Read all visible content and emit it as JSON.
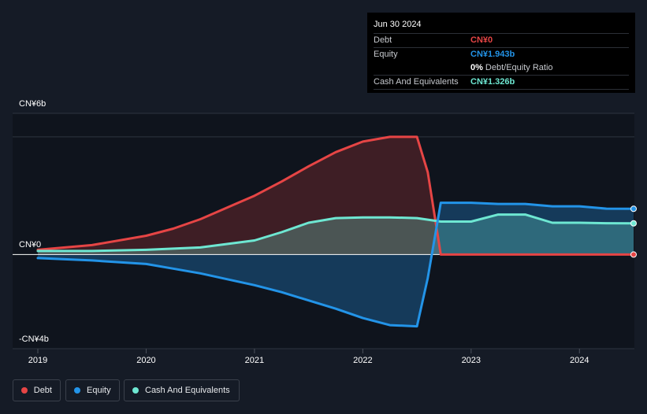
{
  "tooltip": {
    "date": "Jun 30 2024",
    "debt_label": "Debt",
    "debt_value": "CN¥0",
    "equity_label": "Equity",
    "equity_value": "CN¥1.943b",
    "ratio_value": "0%",
    "ratio_label": "Debt/Equity Ratio",
    "cash_label": "Cash And Equivalents",
    "cash_value": "CN¥1.326b"
  },
  "legend": {
    "debt": "Debt",
    "equity": "Equity",
    "cash": "Cash And Equivalents"
  },
  "colors": {
    "debt": "#e64545",
    "equity": "#2394e8",
    "cash": "#6ee7d2",
    "background": "#151b26",
    "plot_background": "#0f141d"
  },
  "chart_data": {
    "type": "area",
    "y_unit": "CN¥b",
    "ylim": [
      -4,
      6
    ],
    "ytick_labels": [
      "CN¥6b",
      "CN¥0",
      "-CN¥4b"
    ],
    "ytick_values": [
      6,
      0,
      -4
    ],
    "x_range": [
      2019.0,
      2024.5
    ],
    "xtick_labels": [
      "2019",
      "2020",
      "2021",
      "2022",
      "2023",
      "2024"
    ],
    "xtick_values": [
      2019,
      2020,
      2021,
      2022,
      2023,
      2024
    ],
    "legend_position": "bottom-left",
    "series": [
      {
        "name": "Debt",
        "color_key": "debt",
        "points": [
          [
            2019.0,
            0.2
          ],
          [
            2019.5,
            0.4
          ],
          [
            2020.0,
            0.8
          ],
          [
            2020.25,
            1.1
          ],
          [
            2020.5,
            1.5
          ],
          [
            2020.75,
            2.0
          ],
          [
            2021.0,
            2.5
          ],
          [
            2021.25,
            3.1
          ],
          [
            2021.5,
            3.75
          ],
          [
            2021.75,
            4.35
          ],
          [
            2022.0,
            4.8
          ],
          [
            2022.25,
            5.0
          ],
          [
            2022.5,
            5.0
          ],
          [
            2022.6,
            3.5
          ],
          [
            2022.72,
            0.0
          ],
          [
            2023.0,
            0.0
          ],
          [
            2023.5,
            0.0
          ],
          [
            2024.0,
            0.0
          ],
          [
            2024.5,
            0.0
          ]
        ]
      },
      {
        "name": "Equity",
        "color_key": "equity",
        "points": [
          [
            2019.0,
            -0.15
          ],
          [
            2019.5,
            -0.25
          ],
          [
            2020.0,
            -0.4
          ],
          [
            2020.25,
            -0.6
          ],
          [
            2020.5,
            -0.8
          ],
          [
            2020.75,
            -1.05
          ],
          [
            2021.0,
            -1.3
          ],
          [
            2021.25,
            -1.6
          ],
          [
            2021.5,
            -1.95
          ],
          [
            2021.75,
            -2.3
          ],
          [
            2022.0,
            -2.7
          ],
          [
            2022.25,
            -3.0
          ],
          [
            2022.5,
            -3.05
          ],
          [
            2022.6,
            -1.0
          ],
          [
            2022.72,
            2.2
          ],
          [
            2023.0,
            2.2
          ],
          [
            2023.25,
            2.15
          ],
          [
            2023.5,
            2.15
          ],
          [
            2023.75,
            2.05
          ],
          [
            2024.0,
            2.05
          ],
          [
            2024.25,
            1.95
          ],
          [
            2024.5,
            1.943
          ]
        ]
      },
      {
        "name": "Cash And Equivalents",
        "color_key": "cash",
        "points": [
          [
            2019.0,
            0.15
          ],
          [
            2019.5,
            0.15
          ],
          [
            2020.0,
            0.2
          ],
          [
            2020.5,
            0.3
          ],
          [
            2021.0,
            0.6
          ],
          [
            2021.25,
            0.95
          ],
          [
            2021.5,
            1.35
          ],
          [
            2021.75,
            1.55
          ],
          [
            2022.0,
            1.58
          ],
          [
            2022.25,
            1.58
          ],
          [
            2022.5,
            1.55
          ],
          [
            2022.72,
            1.4
          ],
          [
            2023.0,
            1.4
          ],
          [
            2023.25,
            1.7
          ],
          [
            2023.5,
            1.7
          ],
          [
            2023.75,
            1.35
          ],
          [
            2024.0,
            1.35
          ],
          [
            2024.25,
            1.33
          ],
          [
            2024.5,
            1.326
          ]
        ]
      }
    ]
  }
}
